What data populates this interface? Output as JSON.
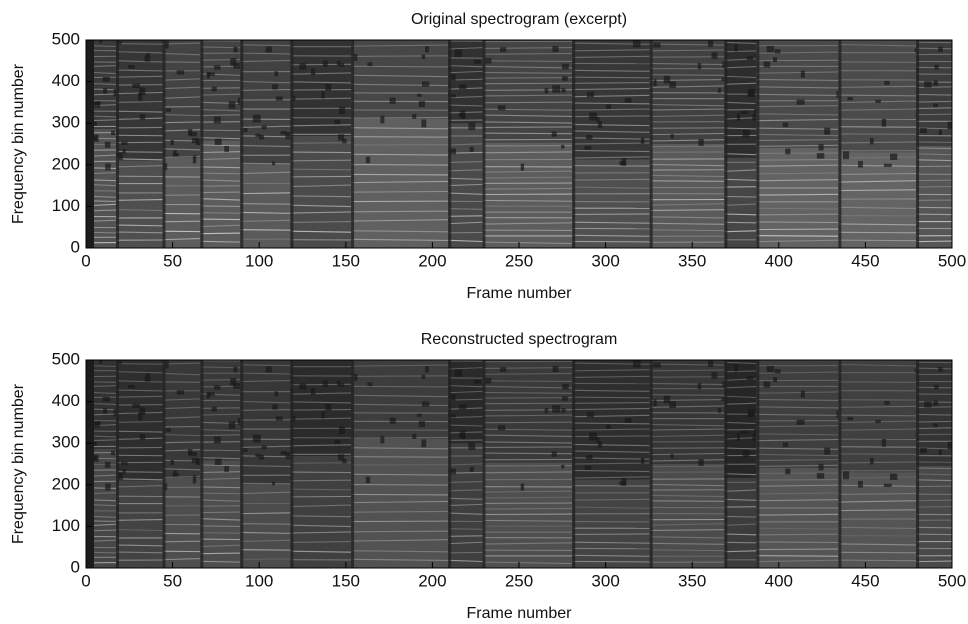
{
  "chart_data": [
    {
      "type": "heatmap",
      "title": "Original spectrogram (excerpt)",
      "xlabel": "Frame number",
      "ylabel": "Frequency bin number",
      "xlim": [
        0,
        500
      ],
      "xticks": [
        0,
        50,
        100,
        150,
        200,
        250,
        300,
        350,
        400,
        450,
        500
      ],
      "ylim": [
        0,
        500
      ],
      "yticks": [
        0,
        100,
        200,
        300,
        400,
        500
      ],
      "colormap": "gray"
    },
    {
      "type": "heatmap",
      "title": "Reconstructed spectrogram",
      "xlabel": "Frame number",
      "ylabel": "Frequency bin number",
      "xlim": [
        0,
        500
      ],
      "xticks": [
        0,
        50,
        100,
        150,
        200,
        250,
        300,
        350,
        400,
        450,
        500
      ],
      "ylim": [
        0,
        500
      ],
      "yticks": [
        0,
        100,
        200,
        300,
        400,
        500
      ],
      "colormap": "gray"
    }
  ]
}
